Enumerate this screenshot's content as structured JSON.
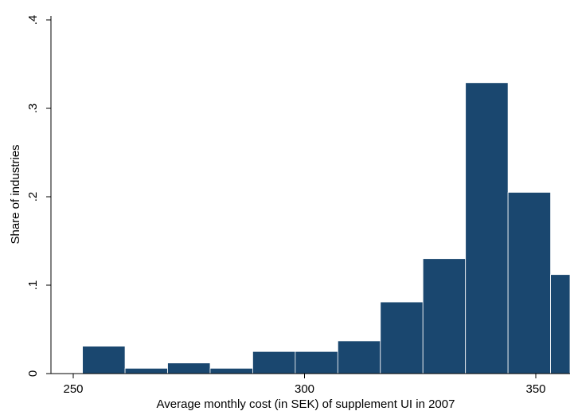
{
  "chart_data": {
    "type": "bar",
    "subtype": "histogram",
    "xlabel": "Average monthly cost (in SEK) of supplement UI in 2007",
    "ylabel": "Share of industries",
    "xlim": [
      250,
      357.5
    ],
    "ylim": [
      0,
      0.4
    ],
    "xticks": [
      250,
      300,
      350
    ],
    "xtick_labels": [
      "250",
      "300",
      "350"
    ],
    "yticks": [
      0,
      0.1,
      0.2,
      0.3,
      0.4
    ],
    "ytick_labels": [
      "0",
      ".1",
      ".2",
      ".3",
      ".4"
    ],
    "grid": false,
    "legend": "none",
    "bar_color": "#1a476f",
    "bins": [
      {
        "x0": 252,
        "x1": 261.2,
        "value": 0.031
      },
      {
        "x0": 261.2,
        "x1": 270.4,
        "value": 0.006
      },
      {
        "x0": 270.4,
        "x1": 279.6,
        "value": 0.012
      },
      {
        "x0": 279.6,
        "x1": 288.8,
        "value": 0.006
      },
      {
        "x0": 288.8,
        "x1": 298,
        "value": 0.025
      },
      {
        "x0": 298,
        "x1": 307.2,
        "value": 0.025
      },
      {
        "x0": 307.2,
        "x1": 316.4,
        "value": 0.037
      },
      {
        "x0": 316.4,
        "x1": 325.6,
        "value": 0.081
      },
      {
        "x0": 325.6,
        "x1": 334.8,
        "value": 0.13
      },
      {
        "x0": 334.8,
        "x1": 344,
        "value": 0.329
      },
      {
        "x0": 344,
        "x1": 353.2,
        "value": 0.205
      },
      {
        "x0": 353.2,
        "x1": 357.5,
        "value": 0.112
      }
    ]
  }
}
